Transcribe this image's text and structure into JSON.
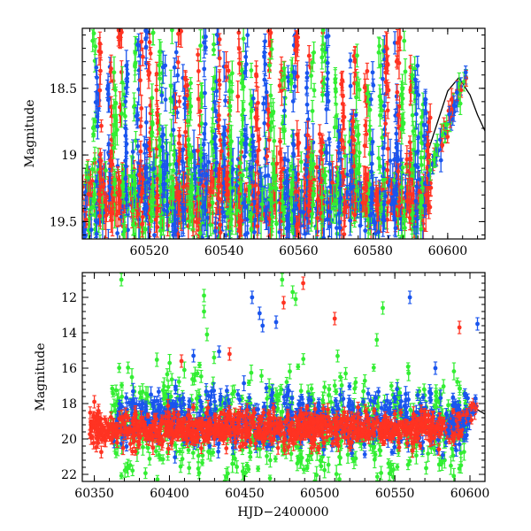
{
  "chart_data": [
    {
      "type": "scatter",
      "panel": "top",
      "title": "",
      "xlabel": "",
      "ylabel": "Magnitude",
      "xlim": [
        60502,
        60610
      ],
      "ylim": [
        18.05,
        19.63
      ],
      "y_inverted": true,
      "xticks": [
        60520,
        60540,
        60560,
        60580,
        60600
      ],
      "xtick_labels": [
        "60520",
        "60540",
        "60560",
        "60580",
        "60600"
      ],
      "yticks": [
        18.5,
        19,
        19.5
      ],
      "ytick_labels": [
        "18.5",
        "19",
        "19.5"
      ],
      "legend": "none",
      "colors": {
        "green": "#33ee33",
        "blue": "#1a55ee",
        "red": "#ff3322",
        "line": "#000000"
      },
      "model_curve": {
        "x": [
          60595,
          60600,
          60603,
          60606,
          60608,
          60610
        ],
        "y": [
          18.95,
          18.52,
          18.42,
          18.55,
          18.7,
          18.82
        ]
      },
      "dense_band": {
        "x_start": 60502,
        "x_end": 60595,
        "y_center": 19.33,
        "y_spread": 0.16
      },
      "rising_segment": {
        "x_start": 60595,
        "x_end": 60606,
        "y_start": 19.15,
        "y_end": 18.3
      },
      "spikes": [
        {
          "x": 60506,
          "y_low": 19.6,
          "y_high": 18.05
        },
        {
          "x": 60510,
          "y_low": 19.5,
          "y_high": 18.3
        },
        {
          "x": 60513,
          "y_low": 19.6,
          "y_high": 18.05
        },
        {
          "x": 60517,
          "y_low": 19.6,
          "y_high": 18.15
        },
        {
          "x": 60520,
          "y_low": 19.5,
          "y_high": 18.05
        },
        {
          "x": 60523,
          "y_low": 19.6,
          "y_high": 18.2
        },
        {
          "x": 60527,
          "y_low": 19.6,
          "y_high": 18.05
        },
        {
          "x": 60530,
          "y_low": 19.5,
          "y_high": 18.4
        },
        {
          "x": 60534,
          "y_low": 19.6,
          "y_high": 18.1
        },
        {
          "x": 60538,
          "y_low": 19.6,
          "y_high": 18.05
        },
        {
          "x": 60541,
          "y_low": 19.5,
          "y_high": 18.3
        },
        {
          "x": 60545,
          "y_low": 19.6,
          "y_high": 18.05
        },
        {
          "x": 60548,
          "y_low": 19.6,
          "y_high": 18.2
        },
        {
          "x": 60552,
          "y_low": 19.5,
          "y_high": 18.05
        },
        {
          "x": 60556,
          "y_low": 19.6,
          "y_high": 18.35
        },
        {
          "x": 60559,
          "y_low": 19.6,
          "y_high": 18.1
        },
        {
          "x": 60563,
          "y_low": 19.5,
          "y_high": 18.2
        },
        {
          "x": 60567,
          "y_low": 19.6,
          "y_high": 18.05
        },
        {
          "x": 60571,
          "y_low": 19.6,
          "y_high": 18.4
        },
        {
          "x": 60575,
          "y_low": 19.5,
          "y_high": 18.25
        },
        {
          "x": 60579,
          "y_low": 19.6,
          "y_high": 18.3
        },
        {
          "x": 60583,
          "y_low": 19.5,
          "y_high": 18.15
        },
        {
          "x": 60587,
          "y_low": 19.5,
          "y_high": 18.1
        },
        {
          "x": 60591,
          "y_low": 19.5,
          "y_high": 18.3
        },
        {
          "x": 60594,
          "y_low": 19.4,
          "y_high": 18.5
        }
      ]
    },
    {
      "type": "scatter",
      "panel": "bottom",
      "title": "",
      "xlabel": "HJD−2400000",
      "ylabel": "Magnitude",
      "xlim": [
        60342,
        60610
      ],
      "ylim": [
        10.6,
        22.4
      ],
      "y_inverted": true,
      "xticks": [
        60350,
        60400,
        60450,
        60500,
        60550,
        60600
      ],
      "xtick_labels": [
        "60350",
        "60400",
        "60450",
        "60500",
        "60550",
        "60600"
      ],
      "yticks": [
        12,
        14,
        16,
        18,
        20,
        22
      ],
      "ytick_labels": [
        "12",
        "14",
        "16",
        "18",
        "20",
        "22"
      ],
      "legend": "none",
      "colors": {
        "green": "#33ee33",
        "blue": "#1a55ee",
        "red": "#ff3322",
        "line": "#000000"
      },
      "model_curve": {
        "x": [
          60598,
          60604,
          60610
        ],
        "y": [
          18.45,
          18.3,
          18.6
        ]
      },
      "red_band": {
        "x_start": 60347,
        "x_end": 60595,
        "y_center": 19.4,
        "y_spread": 0.45
      },
      "blue_band": {
        "x_start": 60363,
        "x_end": 60600,
        "y_center": 18.9,
        "y_spread": 0.8
      },
      "green_scatter": {
        "x_start": 60360,
        "x_end": 60598,
        "y_min": 15.2,
        "y_max": 22.4
      },
      "rising_segment": {
        "x_start": 60585,
        "x_end": 60606,
        "y_start": 19.3,
        "y_end": 18.2
      },
      "outliers": [
        {
          "x": 60368,
          "y": 11.0,
          "color": "green"
        },
        {
          "x": 60350,
          "y": 17.9,
          "color": "red"
        },
        {
          "x": 60408,
          "y": 15.6,
          "color": "red"
        },
        {
          "x": 60416,
          "y": 15.3,
          "color": "blue"
        },
        {
          "x": 60423,
          "y": 11.9,
          "color": "green"
        },
        {
          "x": 60423,
          "y": 12.8,
          "color": "green"
        },
        {
          "x": 60425,
          "y": 14.1,
          "color": "green"
        },
        {
          "x": 60440,
          "y": 15.2,
          "color": "red"
        },
        {
          "x": 60455,
          "y": 12.0,
          "color": "blue"
        },
        {
          "x": 60460,
          "y": 12.9,
          "color": "blue"
        },
        {
          "x": 60462,
          "y": 13.6,
          "color": "blue"
        },
        {
          "x": 60471,
          "y": 13.4,
          "color": "blue"
        },
        {
          "x": 60475,
          "y": 11.0,
          "color": "green"
        },
        {
          "x": 60476,
          "y": 12.3,
          "color": "red"
        },
        {
          "x": 60482,
          "y": 11.7,
          "color": "green"
        },
        {
          "x": 60484,
          "y": 12.1,
          "color": "green"
        },
        {
          "x": 60489,
          "y": 11.2,
          "color": "red"
        },
        {
          "x": 60510,
          "y": 13.2,
          "color": "red"
        },
        {
          "x": 60538,
          "y": 14.4,
          "color": "green"
        },
        {
          "x": 60542,
          "y": 12.6,
          "color": "green"
        },
        {
          "x": 60560,
          "y": 12.0,
          "color": "blue"
        },
        {
          "x": 60577,
          "y": 16.0,
          "color": "blue"
        },
        {
          "x": 60593,
          "y": 13.7,
          "color": "red"
        },
        {
          "x": 60605,
          "y": 13.5,
          "color": "blue"
        }
      ]
    }
  ]
}
